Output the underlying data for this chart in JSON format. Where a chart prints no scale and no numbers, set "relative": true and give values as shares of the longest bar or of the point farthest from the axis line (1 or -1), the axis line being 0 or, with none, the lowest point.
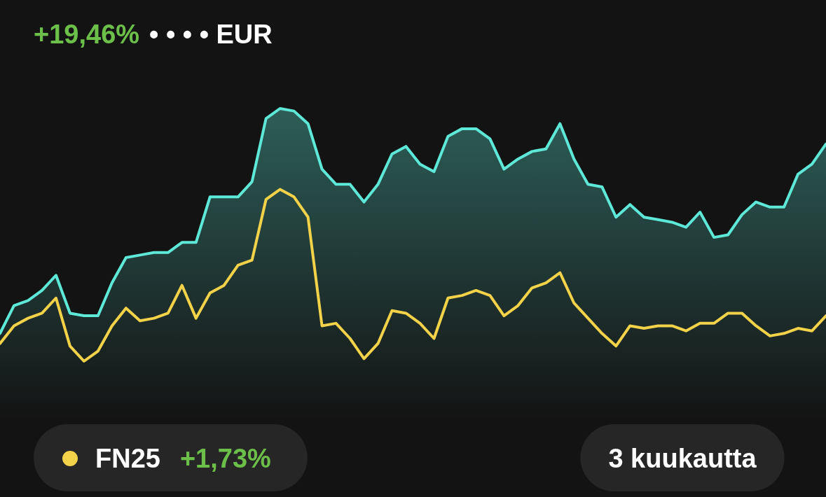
{
  "chart_data": {
    "type": "line",
    "relative": true,
    "categories": [
      null,
      null,
      null,
      null,
      null,
      null,
      null,
      null,
      null,
      null,
      null,
      null,
      null,
      null,
      null,
      null,
      null,
      null,
      null,
      null,
      null,
      null,
      null,
      null,
      null,
      null,
      null,
      null,
      null,
      null,
      null,
      null,
      null,
      null,
      null,
      null,
      null,
      null,
      null,
      null,
      null,
      null,
      null,
      null,
      null,
      null,
      null,
      null,
      null,
      null,
      null,
      null,
      null,
      null,
      null,
      null,
      null,
      null,
      null,
      null
    ],
    "series": [
      {
        "type": "area",
        "color": "#5ee8d8",
        "values": [
          0.11,
          0.22,
          0.24,
          0.28,
          0.34,
          0.19,
          0.18,
          0.18,
          0.31,
          0.41,
          0.42,
          0.43,
          0.43,
          0.47,
          0.47,
          0.65,
          0.65,
          0.65,
          0.71,
          0.96,
          1.0,
          0.99,
          0.94,
          0.76,
          0.7,
          0.7,
          0.63,
          0.7,
          0.82,
          0.85,
          0.78,
          0.75,
          0.89,
          0.92,
          0.92,
          0.88,
          0.76,
          0.8,
          0.83,
          0.84,
          0.94,
          0.8,
          0.7,
          0.69,
          0.57,
          0.62,
          0.57,
          0.56,
          0.55,
          0.53,
          0.59,
          0.49,
          0.5,
          0.58,
          0.63,
          0.61,
          0.61,
          0.74,
          0.78,
          0.86
        ]
      },
      {
        "type": "line",
        "name": "FN25",
        "color": "#f2d249",
        "values": [
          0.07,
          0.14,
          0.17,
          0.19,
          0.25,
          0.06,
          0.0,
          0.04,
          0.14,
          0.21,
          0.16,
          0.17,
          0.19,
          0.3,
          0.17,
          0.27,
          0.3,
          0.38,
          0.4,
          0.64,
          0.68,
          0.65,
          0.57,
          0.14,
          0.15,
          0.09,
          0.01,
          0.07,
          0.2,
          0.19,
          0.15,
          0.09,
          0.25,
          0.26,
          0.28,
          0.26,
          0.18,
          0.22,
          0.29,
          0.31,
          0.35,
          0.23,
          0.17,
          0.11,
          0.06,
          0.14,
          0.13,
          0.14,
          0.14,
          0.12,
          0.15,
          0.15,
          0.19,
          0.19,
          0.14,
          0.1,
          0.11,
          0.13,
          0.12,
          0.18
        ]
      }
    ],
    "legend": "bottom left",
    "annotations": [
      "+19,46%",
      "• • • • EUR",
      "+1,73%",
      "3 kuukautta"
    ]
  }
}
